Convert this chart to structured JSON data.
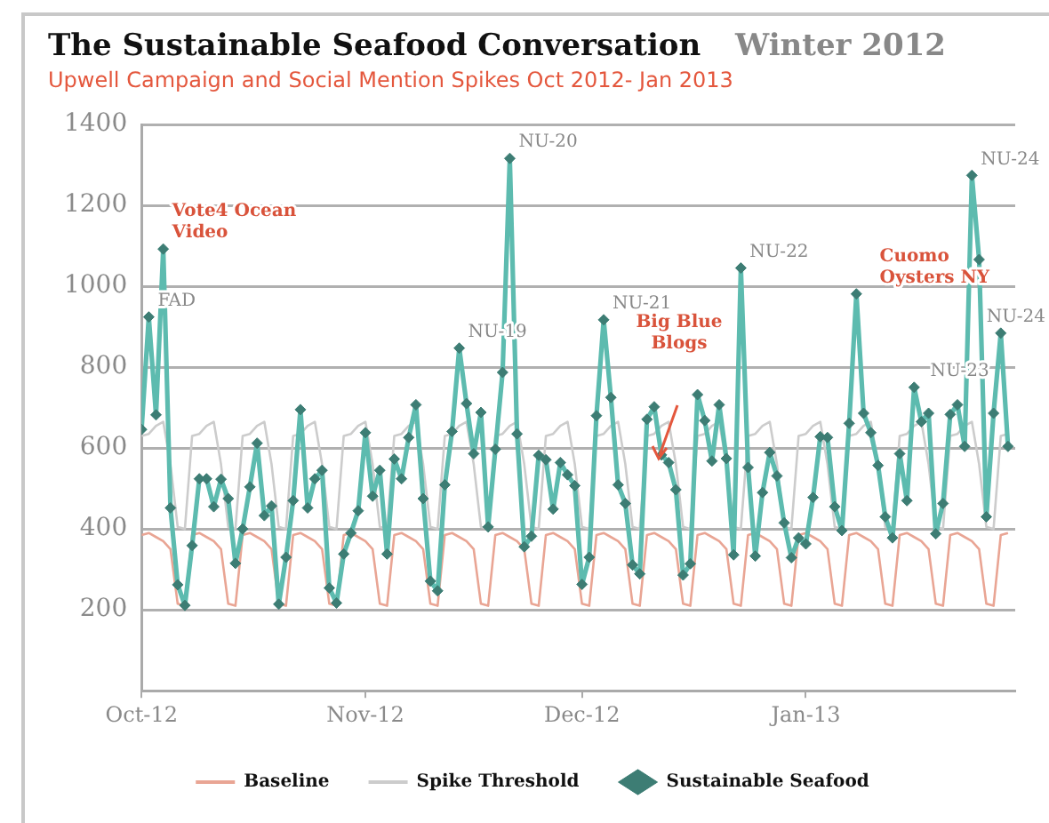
{
  "chart_data": {
    "type": "line",
    "title": "The Sustainable Seafood Conversation",
    "subtitle": "Upwell Campaign and Social Mention Spikes Oct 2012- Jan 2013",
    "annotations": [
      "Winter 2012",
      "Big Blue Blogs",
      {
        "text": "Vote4 Ocean Video",
        "x": "2012-10-04",
        "y": 1092
      },
      {
        "text": "FAD",
        "x": "2012-10-02",
        "y": 924
      },
      {
        "text": "NU-19",
        "x": "2012-11-14",
        "y": 847
      },
      {
        "text": "NU-20",
        "x": "2012-11-21",
        "y": 1316
      },
      {
        "text": "NU-21",
        "x": "2012-12-04",
        "y": 917
      },
      {
        "text": "NU-22",
        "x": "2012-12-23",
        "y": 1045
      },
      {
        "text": "Cuomo Oysters NY",
        "x": "2013-01-10",
        "y": 981
      },
      {
        "text": "NU-23",
        "x": "2013-01-17",
        "y": 750
      },
      {
        "text": "NU-24",
        "x": "2013-01-24",
        "y": 1274
      },
      {
        "text": "NU-24",
        "x": "2013-01-28",
        "y": 884
      }
    ],
    "x": [
      "2012-10-01",
      "2012-10-02",
      "2012-10-03",
      "2012-10-04",
      "2012-10-05",
      "2012-10-06",
      "2012-10-07",
      "2012-10-08",
      "2012-10-09",
      "2012-10-10",
      "2012-10-11",
      "2012-10-12",
      "2012-10-13",
      "2012-10-14",
      "2012-10-15",
      "2012-10-16",
      "2012-10-17",
      "2012-10-18",
      "2012-10-19",
      "2012-10-20",
      "2012-10-21",
      "2012-10-22",
      "2012-10-23",
      "2012-10-24",
      "2012-10-25",
      "2012-10-26",
      "2012-10-27",
      "2012-10-28",
      "2012-10-29",
      "2012-10-30",
      "2012-10-31",
      "2012-11-01",
      "2012-11-02",
      "2012-11-03",
      "2012-11-04",
      "2012-11-05",
      "2012-11-06",
      "2012-11-07",
      "2012-11-08",
      "2012-11-09",
      "2012-11-10",
      "2012-11-11",
      "2012-11-12",
      "2012-11-13",
      "2012-11-14",
      "2012-11-15",
      "2012-11-16",
      "2012-11-17",
      "2012-11-18",
      "2012-11-19",
      "2012-11-20",
      "2012-11-21",
      "2012-11-22",
      "2012-11-23",
      "2012-11-24",
      "2012-11-25",
      "2012-11-26",
      "2012-11-27",
      "2012-11-28",
      "2012-11-29",
      "2012-11-30",
      "2012-12-01",
      "2012-12-02",
      "2012-12-03",
      "2012-12-04",
      "2012-12-05",
      "2012-12-06",
      "2012-12-07",
      "2012-12-08",
      "2012-12-09",
      "2012-12-10",
      "2012-12-11",
      "2012-12-12",
      "2012-12-13",
      "2012-12-14",
      "2012-12-15",
      "2012-12-16",
      "2012-12-17",
      "2012-12-18",
      "2012-12-19",
      "2012-12-20",
      "2012-12-21",
      "2012-12-22",
      "2012-12-23",
      "2012-12-24",
      "2012-12-25",
      "2012-12-26",
      "2012-12-27",
      "2012-12-28",
      "2012-12-29",
      "2012-12-30",
      "2012-12-31",
      "2013-01-01",
      "2013-01-02",
      "2013-01-03",
      "2013-01-04",
      "2013-01-05",
      "2013-01-06",
      "2013-01-07",
      "2013-01-08",
      "2013-01-09",
      "2013-01-10",
      "2013-01-11",
      "2013-01-12",
      "2013-01-13",
      "2013-01-14",
      "2013-01-15",
      "2013-01-16",
      "2013-01-17",
      "2013-01-18",
      "2013-01-19",
      "2013-01-20",
      "2013-01-21",
      "2013-01-22",
      "2013-01-23",
      "2013-01-24",
      "2013-01-25",
      "2013-01-26",
      "2013-01-27",
      "2013-01-28",
      "2013-01-29"
    ],
    "series": [
      {
        "name": "Baseline",
        "color": "#e9a594",
        "marker": "none",
        "values": [
          385,
          390,
          380,
          370,
          350,
          215,
          210,
          385,
          390,
          380,
          370,
          350,
          215,
          210,
          385,
          390,
          380,
          370,
          350,
          215,
          210,
          385,
          390,
          380,
          370,
          350,
          215,
          210,
          385,
          390,
          380,
          370,
          350,
          215,
          210,
          385,
          390,
          380,
          370,
          350,
          215,
          210,
          385,
          390,
          380,
          370,
          350,
          215,
          210,
          385,
          390,
          380,
          370,
          350,
          215,
          210,
          385,
          390,
          380,
          370,
          350,
          215,
          210,
          385,
          390,
          380,
          370,
          350,
          215,
          210,
          385,
          390,
          380,
          370,
          350,
          215,
          210,
          385,
          390,
          380,
          370,
          350,
          215,
          210,
          385,
          390,
          380,
          370,
          350,
          215,
          210,
          385,
          390,
          380,
          370,
          350,
          215,
          210,
          385,
          390,
          380,
          370,
          350,
          215,
          210,
          385,
          390,
          380,
          370,
          350,
          215,
          210,
          385,
          390,
          380,
          370,
          350,
          215,
          210,
          385,
          390
        ]
      },
      {
        "name": "Spike Threshold",
        "color": "#cccccc",
        "marker": "none",
        "values": [
          630,
          635,
          655,
          665,
          560,
          405,
          400,
          630,
          635,
          655,
          665,
          560,
          405,
          400,
          630,
          635,
          655,
          665,
          560,
          405,
          400,
          630,
          635,
          655,
          665,
          560,
          405,
          400,
          630,
          635,
          655,
          665,
          560,
          405,
          400,
          630,
          635,
          655,
          665,
          560,
          405,
          400,
          630,
          635,
          655,
          665,
          560,
          405,
          400,
          630,
          635,
          655,
          665,
          560,
          405,
          400,
          630,
          635,
          655,
          665,
          560,
          405,
          400,
          630,
          635,
          655,
          665,
          560,
          405,
          400,
          630,
          635,
          655,
          665,
          560,
          405,
          400,
          630,
          635,
          655,
          665,
          560,
          405,
          400,
          630,
          635,
          655,
          665,
          560,
          405,
          400,
          630,
          635,
          655,
          665,
          560,
          405,
          400,
          630,
          635,
          655,
          665,
          560,
          405,
          400,
          630,
          635,
          655,
          665,
          560,
          405,
          400,
          630,
          635,
          655,
          665,
          560,
          405,
          400,
          630,
          635
        ]
      },
      {
        "name": "Sustainable Seafood",
        "color": "#5dbbaf",
        "marker": "diamond",
        "values": [
          646,
          924,
          682,
          1092,
          452,
          262,
          211,
          359,
          524,
          524,
          455,
          523,
          475,
          315,
          400,
          504,
          612,
          433,
          457,
          214,
          330,
          470,
          695,
          452,
          524,
          545,
          254,
          217,
          338,
          390,
          445,
          638,
          481,
          545,
          338,
          573,
          524,
          626,
          707,
          475,
          271,
          247,
          509,
          641,
          847,
          710,
          586,
          688,
          405,
          597,
          787,
          1316,
          635,
          356,
          382,
          582,
          571,
          449,
          564,
          534,
          507,
          263,
          330,
          680,
          917,
          725,
          509,
          463,
          311,
          289,
          671,
          702,
          583,
          564,
          497,
          286,
          314,
          732,
          668,
          568,
          707,
          574,
          336,
          1045,
          552,
          333,
          490,
          589,
          531,
          415,
          329,
          378,
          363,
          478,
          628,
          626,
          455,
          396,
          661,
          981,
          686,
          638,
          557,
          430,
          378,
          586,
          470,
          750,
          665,
          686,
          388,
          463,
          683,
          707,
          604,
          1274,
          1066,
          430,
          686,
          884,
          604
        ]
      }
    ],
    "xlim": [
      "2012-10-01",
      "2013-01-30"
    ],
    "xticks": [
      {
        "value": "2012-10-01",
        "label": "Oct-12"
      },
      {
        "value": "2012-11-01",
        "label": "Nov-12"
      },
      {
        "value": "2012-12-01",
        "label": "Dec-12"
      },
      {
        "value": "2013-01-01",
        "label": "Jan-13"
      }
    ],
    "ylim": [
      0,
      1400
    ],
    "yticks": [
      200,
      400,
      600,
      800,
      1000,
      1200,
      1400
    ],
    "grid": "y",
    "legend": "bottom"
  }
}
